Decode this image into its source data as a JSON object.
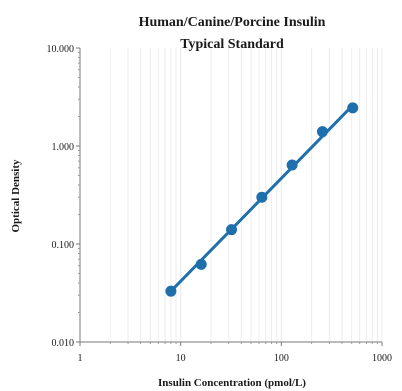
{
  "chart_data": {
    "type": "line",
    "title": [
      "Human/Canine/Porcine Insulin",
      "Typical Standard"
    ],
    "xlabel": "Insulin Concentration (pmol/L)",
    "ylabel": "Optical Density",
    "x_scale": "log",
    "y_scale": "log",
    "xlim": [
      1,
      1000
    ],
    "ylim": [
      0.01,
      10
    ],
    "x_ticks": [
      1,
      10,
      100,
      1000
    ],
    "x_tick_labels": [
      "1",
      "10",
      "100",
      "1000"
    ],
    "y_ticks": [
      0.01,
      0.1,
      1,
      10
    ],
    "y_tick_labels": [
      "0.010",
      "0.100",
      "1.000",
      "10.000"
    ],
    "grid": {
      "vertical_minor": true,
      "horizontal": false
    },
    "legend": "none",
    "series": [
      {
        "color": "#1f6fad",
        "marker": "circle",
        "x": [
          8,
          16,
          32,
          64,
          128,
          256,
          512
        ],
        "y": [
          0.033,
          0.062,
          0.14,
          0.3,
          0.64,
          1.4,
          2.45
        ]
      }
    ],
    "fit_line": {
      "x": [
        8,
        512
      ],
      "y": [
        0.033,
        2.6
      ],
      "color": "#1f6fad"
    }
  }
}
